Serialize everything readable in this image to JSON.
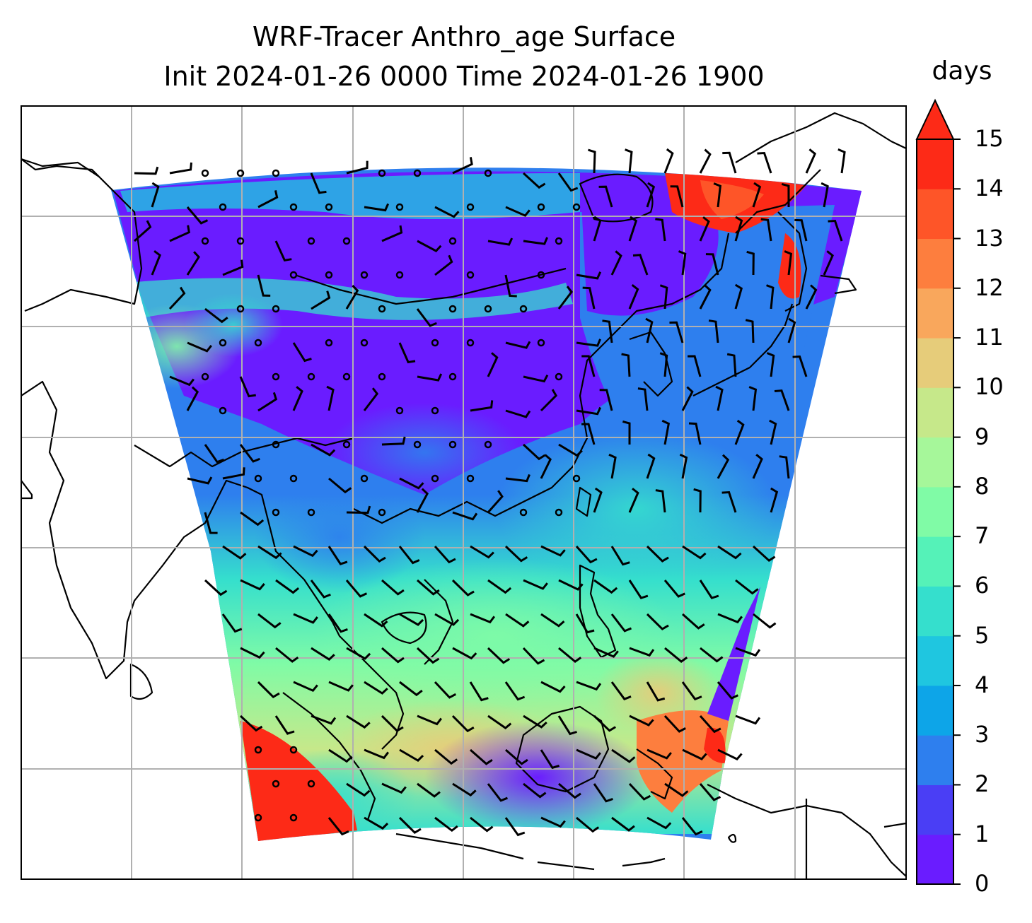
{
  "title": {
    "line1": "WRF-Tracer Anthro_age Surface",
    "line2": "Init 2024-01-26 0000 Time 2024-01-26 1900"
  },
  "colorbar": {
    "unit": "days",
    "ticks": [
      "0",
      "1",
      "2",
      "3",
      "4",
      "5",
      "6",
      "7",
      "8",
      "9",
      "10",
      "11",
      "12",
      "13",
      "14",
      "15"
    ],
    "extend": "max",
    "colors": [
      "#6a1cff",
      "#4a3ef5",
      "#2e7fee",
      "#0da5e8",
      "#1fc6e0",
      "#35dfcd",
      "#55f2b8",
      "#80fba6",
      "#a6f79a",
      "#c6e88a",
      "#e6cc7a",
      "#f9a75c",
      "#fd7e3e",
      "#fe5528",
      "#fd2a17"
    ]
  },
  "map": {
    "field": "Anthro_age",
    "level": "Surface",
    "gridlines": true,
    "coastlines": true,
    "wind_barbs": true
  }
}
